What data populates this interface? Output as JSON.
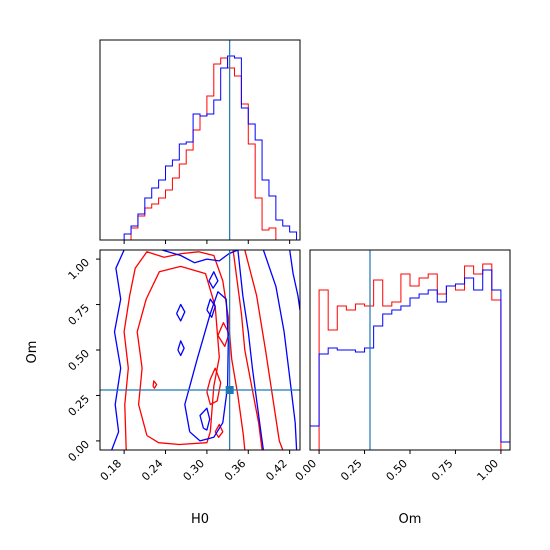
{
  "chart_data": {
    "type": "corner",
    "colors": {
      "series_a": "#ff0000",
      "series_b": "#0000ff",
      "truth": "#1f77b4"
    },
    "truth": {
      "H0": 0.333,
      "Om": 0.28
    },
    "h0_hist": {
      "type": "histogram",
      "xlim": [
        0.145,
        0.435
      ],
      "edges": [
        0.16,
        0.17,
        0.18,
        0.19,
        0.2,
        0.21,
        0.22,
        0.23,
        0.24,
        0.25,
        0.26,
        0.27,
        0.28,
        0.29,
        0.3,
        0.31,
        0.32,
        0.33,
        0.34,
        0.35,
        0.36,
        0.37,
        0.38,
        0.39,
        0.4,
        0.41,
        0.42,
        0.43
      ],
      "series": [
        {
          "color": "#ff0000",
          "values": [
            0.0,
            0.0,
            0.0,
            0.06,
            0.12,
            0.16,
            0.18,
            0.21,
            0.25,
            0.31,
            0.38,
            0.45,
            0.55,
            0.62,
            0.72,
            0.88,
            0.91,
            0.86,
            0.82,
            0.68,
            0.48,
            0.21,
            0.05,
            0.06,
            0.0,
            0.0,
            0.0
          ]
        },
        {
          "color": "#0000ff",
          "values": [
            0.0,
            0.0,
            0.03,
            0.07,
            0.13,
            0.21,
            0.26,
            0.3,
            0.37,
            0.4,
            0.48,
            0.49,
            0.63,
            0.62,
            0.63,
            0.7,
            0.86,
            0.92,
            0.91,
            0.66,
            0.58,
            0.5,
            0.3,
            0.22,
            0.1,
            0.07,
            0.04
          ]
        }
      ]
    },
    "om_hist": {
      "type": "histogram",
      "xlim": [
        -0.05,
        1.05
      ],
      "xticks": [
        "0.00",
        "0.25",
        "0.50",
        "0.75",
        "1.00"
      ],
      "edges": [
        -0.05,
        0.0,
        0.05,
        0.1,
        0.15,
        0.2,
        0.25,
        0.3,
        0.35,
        0.4,
        0.45,
        0.5,
        0.55,
        0.6,
        0.65,
        0.7,
        0.75,
        0.8,
        0.85,
        0.9,
        0.95,
        1.0,
        1.05
      ],
      "series": [
        {
          "color": "#ff0000",
          "values": [
            0.0,
            0.8,
            0.6,
            0.72,
            0.7,
            0.73,
            0.72,
            0.85,
            0.72,
            0.74,
            0.88,
            0.82,
            0.86,
            0.88,
            0.78,
            0.82,
            0.8,
            0.92,
            0.88,
            0.93,
            0.75,
            0.0
          ]
        },
        {
          "color": "#0000ff",
          "values": [
            0.12,
            0.48,
            0.51,
            0.5,
            0.5,
            0.49,
            0.51,
            0.62,
            0.68,
            0.7,
            0.72,
            0.76,
            0.78,
            0.8,
            0.74,
            0.82,
            0.83,
            0.86,
            0.8,
            0.9,
            0.8,
            0.04
          ]
        }
      ]
    },
    "joint": {
      "type": "contour",
      "xlabel": "H0",
      "ylabel": "Om",
      "xlim": [
        0.145,
        0.435
      ],
      "ylim": [
        -0.05,
        1.05
      ],
      "xticks": [
        "0.18",
        "0.24",
        "0.30",
        "0.36",
        "0.42"
      ],
      "yticks": [
        "0.00",
        "0.25",
        "0.50",
        "0.75",
        "1.00"
      ],
      "series": [
        {
          "color": "#ff0000",
          "contours": [
            [
              [
                0.213,
                0.03
              ],
              [
                0.201,
                0.2
              ],
              [
                0.206,
                0.4
              ],
              [
                0.199,
                0.6
              ],
              [
                0.212,
                0.78
              ],
              [
                0.231,
                0.93
              ],
              [
                0.262,
                0.96
              ],
              [
                0.298,
                0.92
              ],
              [
                0.312,
                0.74
              ],
              [
                0.318,
                0.46
              ],
              [
                0.31,
                0.3
              ],
              [
                0.305,
                0.05
              ],
              [
                0.3,
                -0.01
              ],
              [
                0.26,
                -0.02
              ],
              [
                0.23,
                -0.01
              ],
              [
                0.213,
                0.03
              ]
            ],
            [
              [
                0.183,
                -0.05
              ],
              [
                0.181,
                0.2
              ],
              [
                0.186,
                0.4
              ],
              [
                0.18,
                0.6
              ],
              [
                0.188,
                0.8
              ],
              [
                0.196,
                0.95
              ],
              [
                0.213,
                1.04
              ],
              [
                0.238,
                1.01
              ],
              [
                0.263,
                1.03
              ],
              [
                0.288,
                1.04
              ],
              [
                0.31,
                1.02
              ],
              [
                0.323,
                0.88
              ],
              [
                0.331,
                0.68
              ],
              [
                0.336,
                0.45
              ],
              [
                0.345,
                0.25
              ],
              [
                0.353,
                0.03
              ],
              [
                0.355,
                -0.05
              ]
            ],
            [
              [
                0.338,
                1.05
              ],
              [
                0.35,
                0.7
              ],
              [
                0.355,
                0.5
              ],
              [
                0.365,
                0.3
              ],
              [
                0.375,
                0.1
              ],
              [
                0.38,
                -0.05
              ]
            ],
            [
              [
                0.355,
                1.05
              ],
              [
                0.372,
                0.8
              ],
              [
                0.385,
                0.5
              ],
              [
                0.395,
                0.25
              ],
              [
                0.405,
                0.0
              ],
              [
                0.41,
                -0.05
              ]
            ],
            [
              [
                0.3,
                0.27
              ],
              [
                0.305,
                0.34
              ],
              [
                0.312,
                0.4
              ],
              [
                0.32,
                0.32
              ],
              [
                0.315,
                0.22
              ],
              [
                0.305,
                0.2
              ],
              [
                0.3,
                0.27
              ]
            ],
            [
              [
                0.316,
                0.58
              ],
              [
                0.324,
                0.65
              ],
              [
                0.332,
                0.59
              ],
              [
                0.326,
                0.52
              ],
              [
                0.316,
                0.58
              ]
            ],
            [
              [
                0.222,
                0.3
              ],
              [
                0.223,
                0.33
              ],
              [
                0.227,
                0.31
              ],
              [
                0.224,
                0.29
              ],
              [
                0.222,
                0.3
              ]
            ],
            [
              [
                0.312,
                0.05
              ],
              [
                0.318,
                0.09
              ],
              [
                0.323,
                0.05
              ],
              [
                0.317,
                0.02
              ],
              [
                0.312,
                0.05
              ]
            ]
          ]
        },
        {
          "color": "#0000ff",
          "contours": [
            [
              [
                0.295,
                0.07
              ],
              [
                0.29,
                0.14
              ],
              [
                0.3,
                0.18
              ],
              [
                0.304,
                0.12
              ],
              [
                0.3,
                0.06
              ],
              [
                0.295,
                0.07
              ]
            ],
            [
              [
                0.3,
                0.72
              ],
              [
                0.305,
                0.78
              ],
              [
                0.312,
                0.74
              ],
              [
                0.307,
                0.68
              ],
              [
                0.3,
                0.72
              ]
            ],
            [
              [
                0.258,
                0.5
              ],
              [
                0.262,
                0.55
              ],
              [
                0.267,
                0.51
              ],
              [
                0.262,
                0.47
              ],
              [
                0.258,
                0.5
              ]
            ],
            [
              [
                0.303,
                0.88
              ],
              [
                0.31,
                0.93
              ],
              [
                0.316,
                0.88
              ],
              [
                0.309,
                0.84
              ],
              [
                0.303,
                0.88
              ]
            ],
            [
              [
                0.256,
                0.7
              ],
              [
                0.262,
                0.75
              ],
              [
                0.268,
                0.71
              ],
              [
                0.262,
                0.66
              ],
              [
                0.256,
                0.7
              ]
            ],
            [
              [
                0.275,
                0.05
              ],
              [
                0.268,
                0.2
              ],
              [
                0.286,
                0.45
              ],
              [
                0.305,
                0.7
              ],
              [
                0.316,
                0.82
              ],
              [
                0.328,
                0.78
              ],
              [
                0.331,
                0.55
              ],
              [
                0.33,
                0.3
              ],
              [
                0.323,
                0.1
              ],
              [
                0.31,
                0.02
              ],
              [
                0.29,
                0.0
              ],
              [
                0.275,
                0.05
              ]
            ],
            [
              [
                0.162,
                -0.05
              ],
              [
                0.172,
                0.05
              ],
              [
                0.167,
                0.2
              ],
              [
                0.175,
                0.4
              ],
              [
                0.166,
                0.6
              ],
              [
                0.175,
                0.78
              ],
              [
                0.168,
                0.95
              ],
              [
                0.18,
                1.05
              ]
            ],
            [
              [
                0.235,
                1.05
              ],
              [
                0.262,
                1.02
              ],
              [
                0.282,
                0.98
              ],
              [
                0.3,
                1.0
              ],
              [
                0.318,
                0.99
              ],
              [
                0.332,
                1.03
              ],
              [
                0.345,
                1.05
              ]
            ],
            [
              [
                0.345,
                1.05
              ],
              [
                0.352,
                0.8
              ],
              [
                0.36,
                0.6
              ],
              [
                0.366,
                0.4
              ],
              [
                0.373,
                0.2
              ],
              [
                0.38,
                0.0
              ],
              [
                0.382,
                -0.05
              ]
            ],
            [
              [
                0.382,
                1.05
              ],
              [
                0.4,
                0.85
              ],
              [
                0.412,
                0.6
              ],
              [
                0.42,
                0.35
              ],
              [
                0.428,
                0.1
              ],
              [
                0.43,
                -0.05
              ]
            ],
            [
              [
                0.42,
                1.05
              ],
              [
                0.425,
                0.92
              ],
              [
                0.432,
                0.8
              ],
              [
                0.435,
                0.72
              ]
            ]
          ]
        }
      ]
    }
  }
}
